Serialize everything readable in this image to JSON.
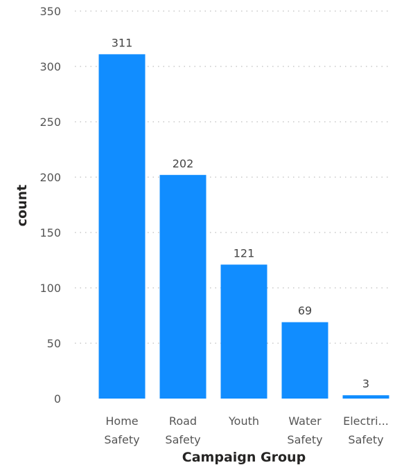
{
  "chart_data": {
    "type": "bar",
    "categories": [
      [
        "Home",
        "Safety"
      ],
      [
        "Road",
        "Safety"
      ],
      [
        "Youth"
      ],
      [
        "Water",
        "Safety"
      ],
      [
        "Electri...",
        "Safety"
      ]
    ],
    "values": [
      311,
      202,
      121,
      69,
      3
    ],
    "data_labels": [
      "311",
      "202",
      "121",
      "69",
      "3"
    ],
    "xlabel": "Campaign Group",
    "ylabel": "count",
    "ylim": [
      0,
      350
    ],
    "yticks": [
      0,
      50,
      100,
      150,
      200,
      250,
      300,
      350
    ],
    "grid": true,
    "bar_color": "#118DFF"
  }
}
